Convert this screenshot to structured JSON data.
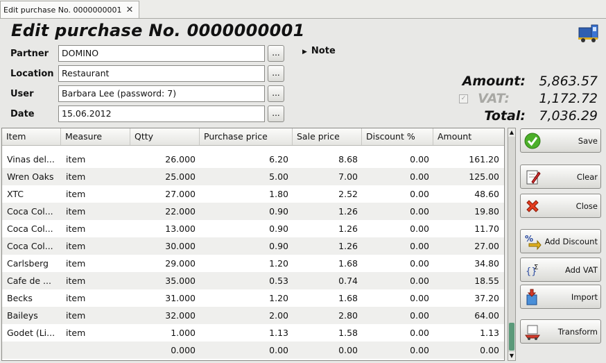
{
  "tab": {
    "label": "Edit purchase No. 0000000001",
    "close": "✕"
  },
  "title": "Edit purchase No. 0000000001",
  "form": {
    "partner": {
      "label": "Partner",
      "value": "DOMINO"
    },
    "location": {
      "label": "Location",
      "value": "Restaurant"
    },
    "user": {
      "label": "User",
      "value": "Barbara Lee (password: 7)"
    },
    "date": {
      "label": "Date",
      "value": "15.06.2012"
    },
    "browse": "..."
  },
  "note": {
    "label": "Note",
    "toggle": "▶"
  },
  "summary": {
    "amount_label": "Amount:",
    "amount": "5,863.57",
    "vat_label": "VAT:",
    "vat": "1,172.72",
    "vat_checked": true,
    "total_label": "Total:",
    "total": "7,036.29"
  },
  "table": {
    "columns": [
      "Item",
      "Measure",
      "Qtty",
      "Purchase price",
      "Sale price",
      "Discount %",
      "Amount"
    ],
    "rows": [
      [
        "Vinas del...",
        "item",
        "26.000",
        "6.20",
        "8.68",
        "0.00",
        "161.20"
      ],
      [
        "Wren Oaks",
        "item",
        "25.000",
        "5.00",
        "7.00",
        "0.00",
        "125.00"
      ],
      [
        "XTC",
        "item",
        "27.000",
        "1.80",
        "2.52",
        "0.00",
        "48.60"
      ],
      [
        "Coca Col...",
        "item",
        "22.000",
        "0.90",
        "1.26",
        "0.00",
        "19.80"
      ],
      [
        "Coca Col...",
        "item",
        "13.000",
        "0.90",
        "1.26",
        "0.00",
        "11.70"
      ],
      [
        "Coca Col...",
        "item",
        "30.000",
        "0.90",
        "1.26",
        "0.00",
        "27.00"
      ],
      [
        "Carlsberg",
        "item",
        "29.000",
        "1.20",
        "1.68",
        "0.00",
        "34.80"
      ],
      [
        "Cafe de ...",
        "item",
        "35.000",
        "0.53",
        "0.74",
        "0.00",
        "18.55"
      ],
      [
        "Becks",
        "item",
        "31.000",
        "1.20",
        "1.68",
        "0.00",
        "37.20"
      ],
      [
        "Baileys",
        "item",
        "32.000",
        "2.00",
        "2.80",
        "0.00",
        "64.00"
      ],
      [
        "Godet (Li...",
        "item",
        "1.000",
        "1.13",
        "1.58",
        "0.00",
        "1.13"
      ],
      [
        "",
        "",
        "0.000",
        "0.00",
        "0.00",
        "0.00",
        "0.00"
      ]
    ]
  },
  "buttons": {
    "save": "Save",
    "clear": "Clear",
    "close": "Close",
    "add_discount": "Add Discount",
    "add_vat": "Add VAT",
    "import": "Import",
    "transform": "Transform"
  },
  "icons": {
    "truck": "truck-icon",
    "save": "checkmark-icon",
    "clear": "clipboard-edit-icon",
    "close": "red-x-icon",
    "discount": "percent-icon",
    "vat": "sigma-icon",
    "import": "import-box-icon",
    "transform": "transform-icon"
  },
  "colors": {
    "save_green": "#4caf2a",
    "close_red": "#e53d1f",
    "scroll_thumb": "#5b9a7a"
  }
}
